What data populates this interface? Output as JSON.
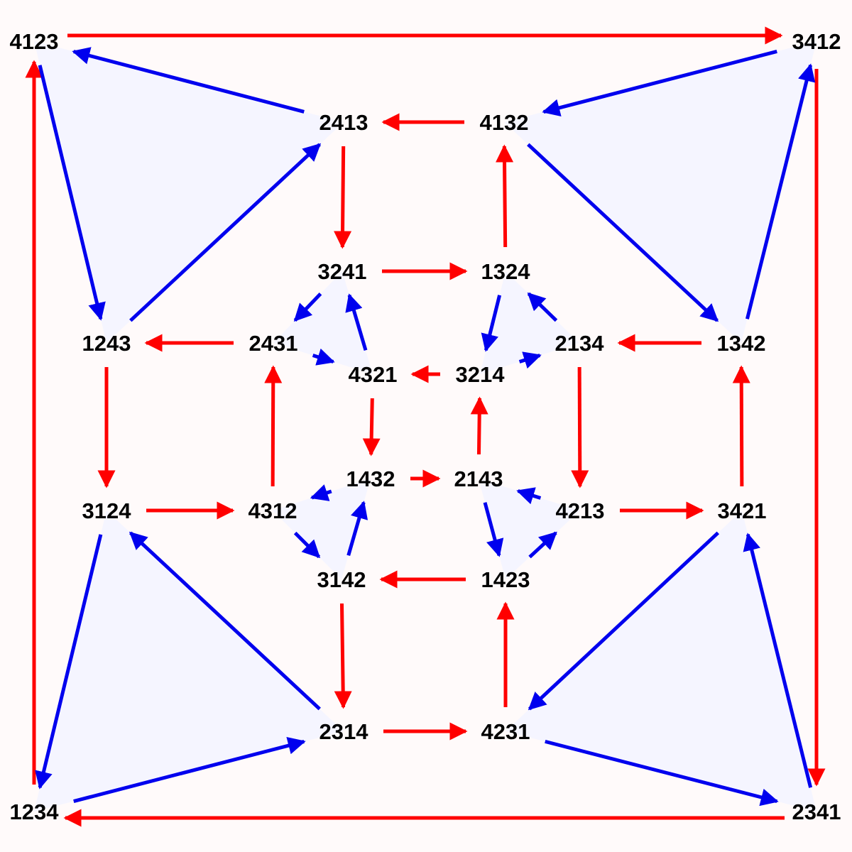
{
  "colors": {
    "background": "#fffafa",
    "face_fill": "#f5f5ff",
    "red_arrow": "#ff0000",
    "blue_arrow": "#0000ee"
  },
  "nodes": {
    "n4123": "4123",
    "n3412": "3412",
    "n2413": "2413",
    "n4132": "4132",
    "n3241": "3241",
    "n1324": "1324",
    "n1243": "1243",
    "n2431": "2431",
    "n2134": "2134",
    "n1342": "1342",
    "n4321": "4321",
    "n3214": "3214",
    "n1432": "1432",
    "n2143": "2143",
    "n3124": "3124",
    "n4312": "4312",
    "n4213": "4213",
    "n3421": "3421",
    "n3142": "3142",
    "n1423": "1423",
    "n2314": "2314",
    "n4231": "4231",
    "n1234": "1234",
    "n2341": "2341"
  },
  "red_edges": [
    [
      "4123",
      "3412"
    ],
    [
      "3412",
      "2341"
    ],
    [
      "2341",
      "1234"
    ],
    [
      "1234",
      "4123"
    ],
    [
      "4132",
      "2413"
    ],
    [
      "2413",
      "3241"
    ],
    [
      "3241",
      "1324"
    ],
    [
      "1324",
      "4132"
    ],
    [
      "2431",
      "1243"
    ],
    [
      "1243",
      "3124"
    ],
    [
      "3124",
      "4312"
    ],
    [
      "4312",
      "2431"
    ],
    [
      "1342",
      "2134"
    ],
    [
      "2134",
      "4213"
    ],
    [
      "4213",
      "3421"
    ],
    [
      "3421",
      "1342"
    ],
    [
      "1423",
      "3142"
    ],
    [
      "3142",
      "2314"
    ],
    [
      "2314",
      "4231"
    ],
    [
      "4231",
      "1423"
    ],
    [
      "3214",
      "4321"
    ],
    [
      "4321",
      "1432"
    ],
    [
      "1432",
      "2143"
    ],
    [
      "2143",
      "3214"
    ]
  ],
  "blue_edges": [
    [
      "2413",
      "4123"
    ],
    [
      "4123",
      "1243"
    ],
    [
      "1243",
      "2413"
    ],
    [
      "3412",
      "4132"
    ],
    [
      "4132",
      "1342"
    ],
    [
      "1342",
      "3412"
    ],
    [
      "2341",
      "3421"
    ],
    [
      "3421",
      "4231"
    ],
    [
      "4231",
      "2341"
    ],
    [
      "1234",
      "2314"
    ],
    [
      "2314",
      "3124"
    ],
    [
      "3124",
      "1234"
    ],
    [
      "3241",
      "2431"
    ],
    [
      "2431",
      "4321"
    ],
    [
      "4321",
      "3241"
    ],
    [
      "1324",
      "3214"
    ],
    [
      "3214",
      "2134"
    ],
    [
      "2134",
      "1324"
    ],
    [
      "4213",
      "2143"
    ],
    [
      "2143",
      "1423"
    ],
    [
      "1423",
      "4213"
    ],
    [
      "4312",
      "3142"
    ],
    [
      "3142",
      "1432"
    ],
    [
      "1432",
      "4312"
    ]
  ]
}
